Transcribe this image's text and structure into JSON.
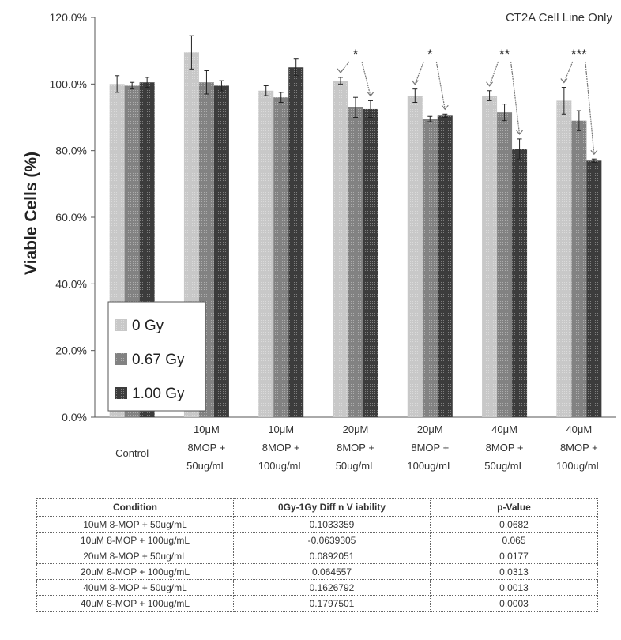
{
  "chart_data": {
    "type": "bar",
    "title": "CT2A Cell Line Only",
    "ylabel": "Viable Cells (%)",
    "xlabel": "",
    "ylim": [
      0,
      120
    ],
    "yticks": [
      "0.0%",
      "20.0%",
      "40.0%",
      "60.0%",
      "80.0%",
      "100.0%",
      "120.0%"
    ],
    "categories": [
      [
        "Control"
      ],
      [
        "10μM",
        "8MOP +",
        "50ug/mL"
      ],
      [
        "10μM",
        "8MOP +",
        "100ug/mL"
      ],
      [
        "20μM",
        "8MOP +",
        "50ug/mL"
      ],
      [
        "20μM",
        "8MOP +",
        "100ug/mL"
      ],
      [
        "40μM",
        "8MOP +",
        "50ug/mL"
      ],
      [
        "40μM",
        "8MOP +",
        "100ug/mL"
      ]
    ],
    "series": [
      {
        "name": "0 Gy",
        "color": "#c8c8c8",
        "values": [
          100.0,
          109.5,
          98.0,
          101.0,
          96.5,
          96.5,
          95.0
        ],
        "errors": [
          2.5,
          5.0,
          1.5,
          1.0,
          2.0,
          1.5,
          4.0
        ]
      },
      {
        "name": "0.67 Gy",
        "color": "#828282",
        "values": [
          99.5,
          100.5,
          96.0,
          93.0,
          89.5,
          91.5,
          89.0
        ],
        "errors": [
          1.0,
          3.5,
          1.5,
          3.0,
          0.8,
          2.5,
          3.0
        ]
      },
      {
        "name": "1.00 Gy",
        "color": "#3c3c3c",
        "values": [
          100.5,
          99.5,
          105.0,
          92.5,
          90.5,
          80.5,
          77.0
        ],
        "errors": [
          1.5,
          1.5,
          2.5,
          2.5,
          0.5,
          3.0,
          0.5
        ]
      }
    ],
    "significance": [
      "",
      "",
      "",
      "*",
      "*",
      "**",
      "***"
    ],
    "legend": {
      "placement": "bottom-left"
    },
    "grid": false
  },
  "table": {
    "headers": [
      "Condition",
      "0Gy-1Gy Diff n V iability",
      "p-Value"
    ],
    "rows": [
      [
        "10uM 8-MOP + 50ug/mL",
        "0.1033359",
        "0.0682"
      ],
      [
        "10uM 8-MOP + 100ug/mL",
        "-0.0639305",
        "0.065"
      ],
      [
        "20uM 8-MOP + 50ug/mL",
        "0.0892051",
        "0.0177"
      ],
      [
        "20uM 8-MOP + 100ug/mL",
        "0.064557",
        "0.0313"
      ],
      [
        "40uM 8-MOP + 50ug/mL",
        "0.1626792",
        "0.0013"
      ],
      [
        "40uM 8-MOP + 100ug/mL",
        "0.1797501",
        "0.0003"
      ]
    ]
  }
}
